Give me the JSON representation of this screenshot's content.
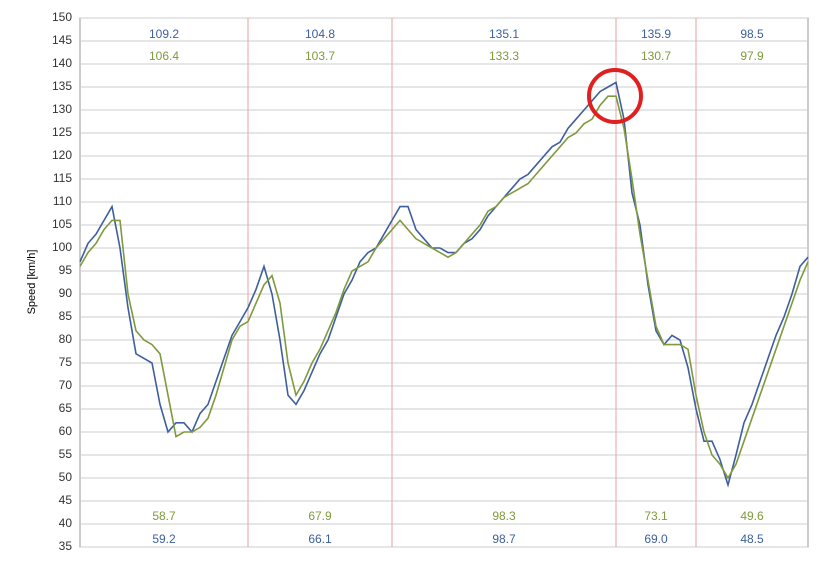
{
  "chart_data": {
    "type": "line",
    "ylabel": "Speed [km/h]",
    "ylim": [
      35,
      150
    ],
    "yticks": [
      35,
      40,
      45,
      50,
      55,
      60,
      65,
      70,
      75,
      80,
      85,
      90,
      95,
      100,
      105,
      110,
      115,
      120,
      125,
      130,
      135,
      140,
      145,
      150
    ],
    "grid": true,
    "xlim": [
      0,
      91
    ],
    "sector_ends": [
      21,
      39,
      67,
      77
    ],
    "series": [
      {
        "color": "#3d5f9e",
        "values": [
          97,
          101,
          103,
          106,
          109,
          100,
          87,
          77,
          76,
          75,
          66,
          60,
          62,
          62,
          60,
          64,
          66,
          71,
          76,
          81,
          84,
          87,
          91,
          96,
          90,
          80,
          68,
          66,
          69,
          73,
          77,
          80,
          85,
          90,
          93,
          97,
          99,
          100,
          103,
          106,
          109,
          109,
          104,
          102,
          100,
          100,
          99,
          99,
          101,
          102,
          104,
          107,
          109,
          111,
          113,
          115,
          116,
          118,
          120,
          122,
          123,
          126,
          128,
          130,
          132,
          134,
          135,
          136,
          128,
          112,
          105,
          92,
          82,
          79,
          81,
          80,
          74,
          65,
          58,
          58,
          54,
          48.5,
          55,
          62,
          66,
          71,
          76,
          81,
          85,
          90,
          96,
          98
        ],
        "sector_max": [
          109.2,
          104.8,
          135.1,
          135.9,
          98.5
        ],
        "sector_min": [
          59.2,
          66.1,
          98.7,
          69.0,
          48.5
        ]
      },
      {
        "color": "#7f9a3c",
        "values": [
          96,
          99,
          101,
          104,
          106,
          106,
          90,
          82,
          80,
          79,
          77,
          68,
          59,
          60,
          60,
          61,
          63,
          68,
          74,
          80,
          83,
          84,
          88,
          92,
          94,
          88,
          75,
          68,
          71,
          75,
          78,
          82,
          86,
          91,
          95,
          96,
          97,
          100,
          102,
          104,
          106,
          104,
          102,
          101,
          100,
          99,
          98,
          99,
          101,
          103,
          105,
          108,
          109,
          111,
          112,
          113,
          114,
          116,
          118,
          120,
          122,
          124,
          125,
          127,
          128,
          131,
          133,
          133,
          126,
          115,
          103,
          93,
          83,
          79,
          79,
          79,
          78,
          68,
          60,
          55,
          53,
          50,
          53,
          58,
          63,
          68,
          73,
          78,
          83,
          88,
          93,
          97
        ],
        "sector_max": [
          106.4,
          103.7,
          133.3,
          130.7,
          97.9
        ],
        "sector_min": [
          58.7,
          67.9,
          98.3,
          73.1,
          49.6
        ]
      }
    ]
  }
}
